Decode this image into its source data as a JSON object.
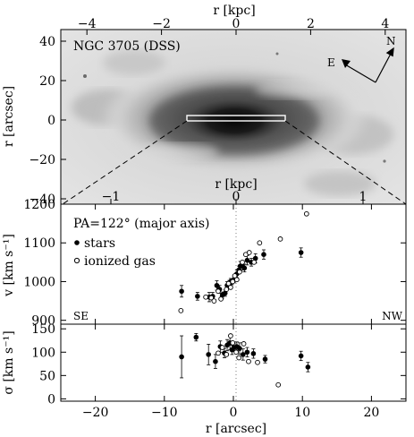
{
  "image_panel": {
    "title": "NGC 3705 (DSS)",
    "top_axis_label": "r [kpc]",
    "top_ticks": [
      "−4",
      "−2",
      "0",
      "2",
      "4"
    ],
    "left_axis_label": "r [arcsec]",
    "left_ticks": [
      "40",
      "20",
      "0",
      "−20",
      "−40"
    ],
    "inner_axis_label": "r [kpc]",
    "inner_ticks": [
      "−1",
      "0",
      "1"
    ],
    "compass_n": "N",
    "compass_e": "E"
  },
  "chart_data": [
    {
      "type": "scatter",
      "ylabel": "v [km s⁻¹]",
      "annotation": "PA=122° (major axis)",
      "legend": [
        "stars",
        "ionized gas"
      ],
      "left_note": "SE",
      "right_note": "NW",
      "xlim": [
        -25,
        25
      ],
      "ylim": [
        890,
        1200
      ],
      "y_ticks": [
        "1200",
        "1100",
        "1000",
        "900"
      ],
      "series": [
        {
          "name": "stars",
          "marker": "filled",
          "x": [
            -7.5,
            -5.2,
            -3.5,
            -3.0,
            -2.4,
            -2.0,
            -1.6,
            -1.2,
            -0.9,
            -0.6,
            -0.4,
            -0.2,
            0.1,
            0.3,
            0.5,
            0.8,
            1.0,
            1.3,
            1.6,
            2.0,
            2.6,
            3.2,
            4.4,
            9.8
          ],
          "y": [
            975,
            962,
            960,
            962,
            990,
            980,
            965,
            970,
            990,
            995,
            1000,
            1000,
            1005,
            1010,
            1020,
            1030,
            1040,
            1040,
            1035,
            1055,
            1050,
            1060,
            1070,
            1075
          ],
          "err": [
            15,
            10,
            12,
            10,
            12,
            10,
            8,
            8,
            10,
            8,
            8,
            8,
            8,
            8,
            10,
            10,
            12,
            10,
            10,
            12,
            10,
            12,
            12,
            12
          ]
        },
        {
          "name": "ionized gas",
          "marker": "open",
          "x": [
            -7.6,
            -4.0,
            -3.2,
            -2.8,
            -2.2,
            -1.8,
            -1.0,
            -0.7,
            -0.4,
            -0.1,
            0.2,
            0.5,
            0.9,
            1.3,
            1.8,
            2.3,
            3.0,
            3.8,
            6.8,
            10.6
          ],
          "y": [
            925,
            960,
            958,
            950,
            975,
            955,
            980,
            995,
            985,
            1000,
            1015,
            1005,
            1025,
            1050,
            1070,
            1075,
            1050,
            1100,
            1110,
            1175
          ]
        }
      ]
    },
    {
      "type": "scatter",
      "ylabel": "σ [km s⁻¹]",
      "xlabel": "r [arcsec]",
      "xlim": [
        -25,
        25
      ],
      "ylim": [
        -5,
        160
      ],
      "x_ticks": [
        "−20",
        "−10",
        "0",
        "10",
        "20"
      ],
      "y_ticks": [
        "150",
        "100",
        "50",
        "0"
      ],
      "series": [
        {
          "name": "stars",
          "marker": "filled",
          "x": [
            -7.5,
            -5.4,
            -3.6,
            -2.6,
            -1.9,
            -1.3,
            -0.9,
            -0.5,
            -0.2,
            0.1,
            0.5,
            0.9,
            1.4,
            2.0,
            2.9,
            4.6,
            9.8,
            10.8
          ],
          "y": [
            90,
            132,
            95,
            80,
            112,
            98,
            115,
            120,
            105,
            110,
            112,
            108,
            95,
            100,
            97,
            85,
            92,
            68
          ],
          "err": [
            45,
            8,
            22,
            15,
            12,
            10,
            12,
            15,
            10,
            8,
            10,
            12,
            12,
            10,
            10,
            8,
            10,
            10
          ]
        },
        {
          "name": "ionized gas",
          "marker": "open",
          "x": [
            -2.2,
            -1.6,
            -1.0,
            -0.4,
            -0.1,
            0.4,
            0.8,
            1.5,
            2.2,
            3.5,
            6.5
          ],
          "y": [
            98,
            110,
            95,
            135,
            120,
            100,
            88,
            118,
            80,
            78,
            30
          ]
        }
      ]
    }
  ]
}
